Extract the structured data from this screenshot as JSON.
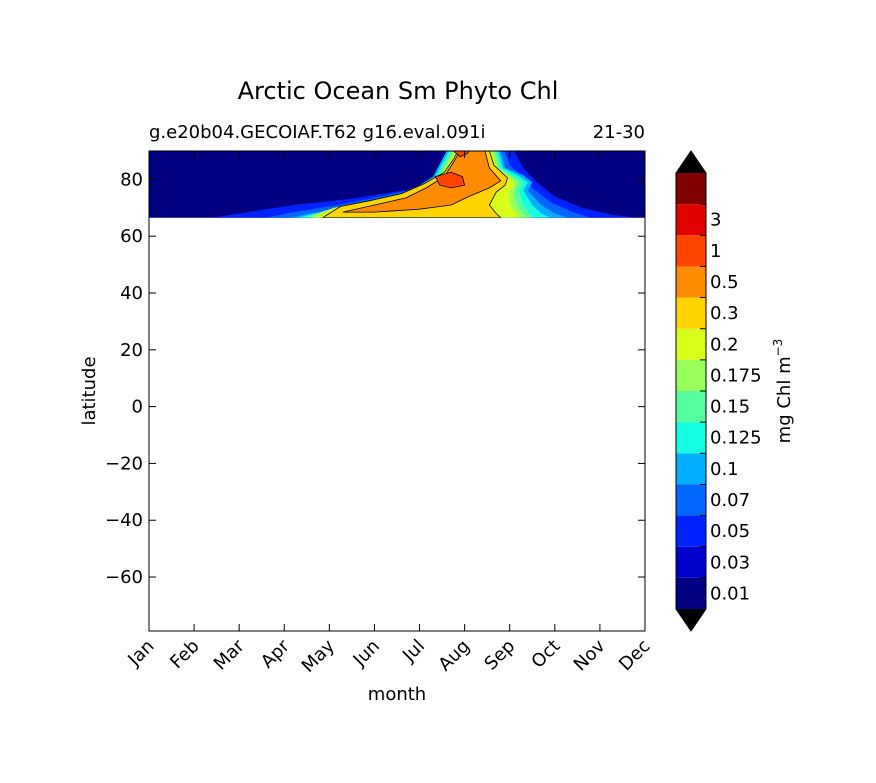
{
  "chart_data": {
    "type": "heatmap",
    "title": "Arctic Ocean Sm Phyto Chl",
    "subtitle_left": "g.e20b04.GECOIAF.T62 g16.eval.091i",
    "subtitle_right": "21-30",
    "xlabel": "month",
    "ylabel": "latitude",
    "x_ticks": [
      "Jan",
      "Feb",
      "Mar",
      "Apr",
      "May",
      "Jun",
      "Jul",
      "Aug",
      "Sep",
      "Oct",
      "Nov",
      "Dec"
    ],
    "y_ticks": [
      "80",
      "60",
      "40",
      "20",
      "0",
      "−20",
      "−40",
      "−60"
    ],
    "y_tick_values": [
      80,
      60,
      40,
      20,
      0,
      -20,
      -40,
      -60
    ],
    "xlim": [
      0,
      11
    ],
    "ylim": [
      -79,
      90
    ],
    "data_lat_range": [
      66.5,
      90
    ],
    "colorbar": {
      "label": "mg Chl m",
      "label_exponent": "−3",
      "levels": [
        "0.01",
        "0.03",
        "0.05",
        "0.07",
        "0.1",
        "0.125",
        "0.15",
        "0.175",
        "0.2",
        "0.3",
        "0.5",
        "1",
        "3"
      ],
      "colors": [
        "#000080",
        "#0000cd",
        "#0022ff",
        "#0066ff",
        "#00b0ff",
        "#14ffe2",
        "#55ff9e",
        "#99ff5a",
        "#d8ff1a",
        "#ffd400",
        "#ff8c00",
        "#ff4500",
        "#e00000",
        "#800000"
      ],
      "extend": "both"
    },
    "contour_bands": [
      {
        "level_index": 2,
        "points": [
          [
            1.4,
            66.5
          ],
          [
            2.4,
            69
          ],
          [
            3.2,
            71
          ],
          [
            4.4,
            73
          ],
          [
            5.2,
            75
          ],
          [
            6.0,
            77
          ],
          [
            6.6,
            81
          ],
          [
            6.9,
            86
          ],
          [
            7.1,
            90
          ],
          [
            8.1,
            90
          ],
          [
            8.3,
            84
          ],
          [
            8.6,
            79
          ],
          [
            9.0,
            74
          ],
          [
            9.6,
            70
          ],
          [
            10.3,
            67.5
          ],
          [
            10.8,
            66.5
          ]
        ]
      },
      {
        "level_index": 3,
        "points": [
          [
            2.6,
            66.5
          ],
          [
            3.2,
            68.5
          ],
          [
            4.2,
            71
          ],
          [
            5.0,
            73.5
          ],
          [
            5.7,
            76
          ],
          [
            6.3,
            80
          ],
          [
            6.6,
            86
          ],
          [
            6.8,
            90
          ],
          [
            7.9,
            90
          ],
          [
            8.0,
            85
          ],
          [
            8.3,
            80.5
          ],
          [
            8.5,
            77
          ],
          [
            8.9,
            72
          ],
          [
            9.4,
            68.5
          ],
          [
            9.8,
            66.5
          ]
        ]
      },
      {
        "level_index": 4,
        "points": [
          [
            3.1,
            66.5
          ],
          [
            3.6,
            68
          ],
          [
            4.4,
            70
          ],
          [
            5.2,
            72.5
          ],
          [
            5.8,
            76
          ],
          [
            6.3,
            81
          ],
          [
            6.5,
            87
          ],
          [
            6.6,
            90
          ],
          [
            7.8,
            90
          ],
          [
            7.9,
            84
          ],
          [
            8.3,
            81.5
          ],
          [
            8.5,
            79
          ],
          [
            8.4,
            76
          ],
          [
            8.7,
            71
          ],
          [
            9.0,
            68
          ],
          [
            9.3,
            66.5
          ]
        ]
      },
      {
        "level_index": 5,
        "points": [
          [
            3.3,
            66.5
          ],
          [
            3.8,
            68.5
          ],
          [
            4.5,
            70.5
          ],
          [
            5.3,
            73
          ],
          [
            5.9,
            76.5
          ],
          [
            6.35,
            81
          ],
          [
            6.55,
            87
          ],
          [
            6.65,
            90
          ],
          [
            7.75,
            90
          ],
          [
            7.85,
            84
          ],
          [
            8.2,
            81.2
          ],
          [
            8.4,
            79
          ],
          [
            8.3,
            76
          ],
          [
            8.5,
            71
          ],
          [
            8.7,
            68
          ],
          [
            8.9,
            66.5
          ]
        ]
      },
      {
        "level_index": 6,
        "points": [
          [
            3.45,
            66.5
          ],
          [
            3.9,
            69
          ],
          [
            4.6,
            71
          ],
          [
            5.4,
            73.5
          ],
          [
            5.95,
            77
          ],
          [
            6.4,
            81
          ],
          [
            6.6,
            87
          ],
          [
            6.7,
            90
          ],
          [
            7.7,
            90
          ],
          [
            7.8,
            84
          ],
          [
            8.1,
            81
          ],
          [
            8.3,
            79
          ],
          [
            8.2,
            76
          ],
          [
            8.3,
            71
          ],
          [
            8.45,
            68
          ],
          [
            8.55,
            66.5
          ]
        ]
      },
      {
        "level_index": 7,
        "points": [
          [
            3.55,
            66.5
          ],
          [
            4.0,
            69.5
          ],
          [
            4.7,
            71.5
          ],
          [
            5.5,
            74
          ],
          [
            6.0,
            77.5
          ],
          [
            6.45,
            81.5
          ],
          [
            6.65,
            87
          ],
          [
            6.75,
            90
          ],
          [
            7.65,
            90
          ],
          [
            7.75,
            84
          ],
          [
            8.05,
            80.8
          ],
          [
            8.2,
            79
          ],
          [
            8.1,
            76
          ],
          [
            8.15,
            71
          ],
          [
            8.3,
            68
          ],
          [
            8.4,
            66.5
          ]
        ]
      },
      {
        "level_index": 8,
        "points": [
          [
            3.65,
            66.5
          ],
          [
            4.1,
            70
          ],
          [
            4.8,
            72
          ],
          [
            5.55,
            74.5
          ],
          [
            6.05,
            78
          ],
          [
            6.5,
            82
          ],
          [
            6.7,
            87
          ],
          [
            6.8,
            90
          ],
          [
            7.6,
            90
          ],
          [
            7.7,
            84
          ],
          [
            8.0,
            80.5
          ],
          [
            8.1,
            78.5
          ],
          [
            8.0,
            76
          ],
          [
            8.0,
            71
          ],
          [
            8.15,
            68
          ],
          [
            8.2,
            66.5
          ]
        ]
      },
      {
        "level_index": 9,
        "points": [
          [
            3.85,
            66.5
          ],
          [
            4.25,
            70.5
          ],
          [
            4.9,
            72.5
          ],
          [
            5.6,
            75
          ],
          [
            6.1,
            78.5
          ],
          [
            6.55,
            82.5
          ],
          [
            6.75,
            87
          ],
          [
            6.85,
            90
          ],
          [
            7.55,
            90
          ],
          [
            7.65,
            85
          ],
          [
            7.95,
            80.5
          ],
          [
            7.9,
            78
          ],
          [
            7.7,
            75.5
          ],
          [
            7.55,
            71
          ],
          [
            7.7,
            68
          ],
          [
            7.8,
            66.5
          ]
        ]
      },
      {
        "level_index": 10,
        "points": [
          [
            4.3,
            68.5
          ],
          [
            5.0,
            71
          ],
          [
            5.7,
            73.5
          ],
          [
            6.15,
            77
          ],
          [
            6.55,
            81
          ],
          [
            6.75,
            86
          ],
          [
            6.9,
            90
          ],
          [
            7.45,
            90
          ],
          [
            7.55,
            84
          ],
          [
            7.8,
            79.5
          ],
          [
            7.55,
            77
          ],
          [
            7.1,
            74
          ],
          [
            6.7,
            71
          ],
          [
            6.0,
            69.5
          ],
          [
            5.0,
            68.5
          ]
        ]
      },
      {
        "level_index": 11,
        "points": [
          [
            6.35,
            81
          ],
          [
            6.45,
            78
          ],
          [
            6.7,
            77
          ],
          [
            7.0,
            78
          ],
          [
            6.95,
            81
          ],
          [
            6.7,
            82.5
          ]
        ]
      },
      {
        "level_index": 11,
        "points": [
          [
            6.75,
            90
          ],
          [
            6.9,
            88
          ],
          [
            7.05,
            89
          ],
          [
            7.1,
            90
          ]
        ]
      }
    ]
  }
}
